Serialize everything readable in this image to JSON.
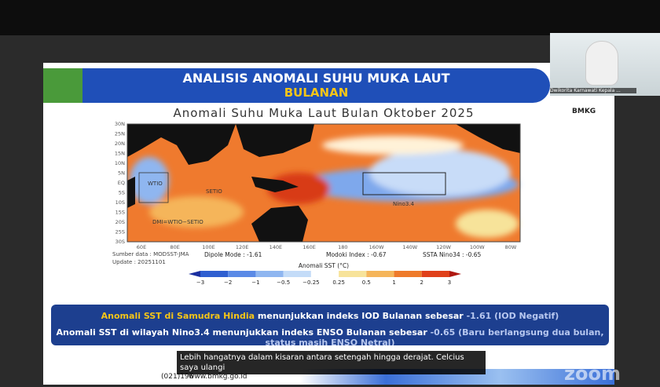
{
  "slide": {
    "title_line1": "ANALISIS ANOMALI SUHU MUKA LAUT",
    "title_line2": "BULANAN",
    "map_title": "Anomali Suhu Muka Laut Bulan Oktober 2025",
    "lat_labels": [
      "30N",
      "25N",
      "20N",
      "15N",
      "10N",
      "5N",
      "EQ",
      "5S",
      "10S",
      "15S",
      "20S",
      "25S",
      "30S"
    ],
    "lon_labels": [
      "60E",
      "80E",
      "100E",
      "120E",
      "140E",
      "160E",
      "180",
      "160W",
      "140W",
      "120W",
      "100W",
      "80W"
    ],
    "region_labels": {
      "wtio": "WTIO",
      "setio": "SETIO",
      "dmi": "DMI=WTIO−SETIO",
      "nino": "Nino3.4"
    },
    "source": "Sumber data : MODSST-JMA",
    "update": "Update : 20251101",
    "dipole": "Dipole Mode : -1.61",
    "modoki": "Modoki Index : -0.67",
    "ssta": "SSTA Nino34 : -0.65",
    "colorbar_title": "Anomali SST (°C)",
    "colorbar_ticks": [
      "−3",
      "−2",
      "−1",
      "−0.5",
      "−0.25",
      "0.25",
      "0.5",
      "1",
      "2",
      "3"
    ],
    "colorbar_colors": [
      "#1a2fa0",
      "#2f5fd0",
      "#5a8ae6",
      "#8fb6f0",
      "#c4dcf8",
      "#ffffff",
      "#f7e39a",
      "#f5b55a",
      "#ee7a2a",
      "#e0401a",
      "#b01810"
    ],
    "info_line1_highlight": "Anomali SST di Samudra Hindia",
    "info_line1_text": "menunjukkan indeks IOD Bulanan sebesar",
    "info_line1_value": "-1.61 (IOD Negatif)",
    "info_line2_text": "Anomali SST di wilayah Nino3.4 menunjukkan indeks ENSO Bulanan sebesar",
    "info_line2_value": "-0.65 (Baru berlangsung dua bulan, status masih ENSO Netral)"
  },
  "caption": "Lebih hangatnya dalam kisaran antara setengah hingga derajat. Celcius saya ulangi",
  "footer": {
    "phone": "(021)196",
    "website": "www.bmkg.go.id"
  },
  "webcam": {
    "name": "Dwikorita Karnawati Kepala ...",
    "logo": "BMKG"
  },
  "watermark": "zoom"
}
